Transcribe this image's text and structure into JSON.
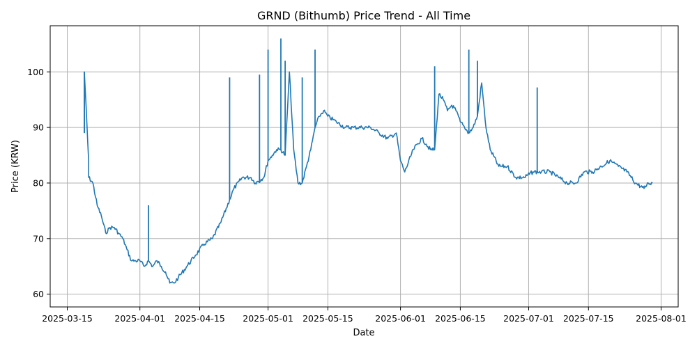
{
  "chart_data": {
    "type": "line",
    "title": "GRND (Bithumb) Price Trend - All Time",
    "xlabel": "Date",
    "ylabel": "Price (KRW)",
    "x_axis_type": "date",
    "xlim": [
      "2025-03-11",
      "2025-08-05"
    ],
    "ylim": [
      57.7,
      108.3
    ],
    "x_ticks": [
      "2025-03-15",
      "2025-04-01",
      "2025-04-15",
      "2025-05-01",
      "2025-05-15",
      "2025-06-01",
      "2025-06-15",
      "2025-07-01",
      "2025-07-15",
      "2025-08-01"
    ],
    "y_ticks": [
      60,
      70,
      80,
      90,
      100
    ],
    "grid": true,
    "legend": "none",
    "colors": {
      "line": "#1f77b4",
      "grid": "#b0b0b0"
    },
    "series": [
      {
        "x": [
          "2025-03-19",
          "2025-03-19",
          "2025-03-20",
          "2025-03-20",
          "2025-03-21",
          "2025-03-22",
          "2025-03-23",
          "2025-03-24",
          "2025-03-25",
          "2025-03-26",
          "2025-03-27",
          "2025-03-28",
          "2025-03-29",
          "2025-03-30",
          "2025-03-31",
          "2025-04-01",
          "2025-04-02",
          "2025-04-03",
          "2025-04-04",
          "2025-04-05",
          "2025-04-06",
          "2025-04-07",
          "2025-04-08",
          "2025-04-09",
          "2025-04-10",
          "2025-04-12",
          "2025-04-14",
          "2025-04-16",
          "2025-04-18",
          "2025-04-20",
          "2025-04-22",
          "2025-04-23",
          "2025-04-25",
          "2025-04-27",
          "2025-04-28",
          "2025-04-30",
          "2025-05-01",
          "2025-05-02",
          "2025-05-03",
          "2025-05-04",
          "2025-05-05",
          "2025-05-06",
          "2025-05-07",
          "2025-05-08",
          "2025-05-09",
          "2025-05-10",
          "2025-05-11",
          "2025-05-12",
          "2025-05-13",
          "2025-05-14",
          "2025-05-15",
          "2025-05-17",
          "2025-05-19",
          "2025-05-21",
          "2025-05-23",
          "2025-05-25",
          "2025-05-27",
          "2025-05-29",
          "2025-05-31",
          "2025-06-01",
          "2025-06-02",
          "2025-06-04",
          "2025-06-06",
          "2025-06-07",
          "2025-06-08",
          "2025-06-09",
          "2025-06-10",
          "2025-06-11",
          "2025-06-12",
          "2025-06-13",
          "2025-06-14",
          "2025-06-15",
          "2025-06-16",
          "2025-06-17",
          "2025-06-18",
          "2025-06-19",
          "2025-06-20",
          "2025-06-21",
          "2025-06-22",
          "2025-06-24",
          "2025-06-26",
          "2025-06-28",
          "2025-06-30",
          "2025-07-02",
          "2025-07-04",
          "2025-07-06",
          "2025-07-08",
          "2025-07-10",
          "2025-07-12",
          "2025-07-14",
          "2025-07-16",
          "2025-07-18",
          "2025-07-20",
          "2025-07-22",
          "2025-07-24",
          "2025-07-26",
          "2025-07-28",
          "2025-07-29",
          "2025-07-30"
        ],
        "values": [
          89,
          100,
          84,
          81,
          80,
          76,
          74,
          71,
          72,
          72,
          71,
          70,
          68,
          66,
          66,
          66,
          65,
          66,
          65,
          66,
          65,
          64,
          62,
          62,
          63,
          65,
          67,
          69,
          70,
          73,
          77,
          79,
          81,
          81,
          80,
          81,
          84,
          85,
          86,
          86,
          85,
          100,
          86,
          80,
          80,
          83,
          86,
          90,
          92,
          93,
          92,
          91,
          90,
          90,
          90,
          90,
          89,
          88,
          89,
          84,
          82,
          86,
          88,
          87,
          86,
          86,
          96,
          95,
          93,
          94,
          93,
          91,
          90,
          89,
          90,
          92,
          98,
          90,
          86,
          83,
          83,
          81,
          81,
          82,
          82,
          82,
          81,
          80,
          80,
          82,
          82,
          83,
          84,
          83,
          82,
          80,
          79,
          80,
          80
        ],
        "spikes": [
          {
            "x": "2025-03-19",
            "y": 100
          },
          {
            "x": "2025-04-03",
            "y": 76
          },
          {
            "x": "2025-04-22",
            "y": 99
          },
          {
            "x": "2025-04-29",
            "y": 99.5
          },
          {
            "x": "2025-05-01",
            "y": 104
          },
          {
            "x": "2025-05-04",
            "y": 106
          },
          {
            "x": "2025-05-05",
            "y": 102
          },
          {
            "x": "2025-05-09",
            "y": 99
          },
          {
            "x": "2025-05-12",
            "y": 104
          },
          {
            "x": "2025-06-09",
            "y": 101
          },
          {
            "x": "2025-06-17",
            "y": 104
          },
          {
            "x": "2025-06-19",
            "y": 102
          },
          {
            "x": "2025-07-03",
            "y": 97.2
          }
        ]
      }
    ]
  }
}
